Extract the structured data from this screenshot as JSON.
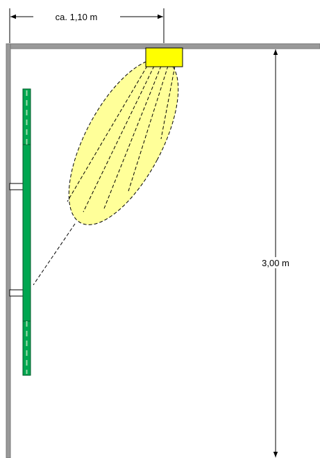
{
  "dimensions": {
    "width_label": "ca. 1,10 m",
    "height_label": "3,00 m"
  }
}
